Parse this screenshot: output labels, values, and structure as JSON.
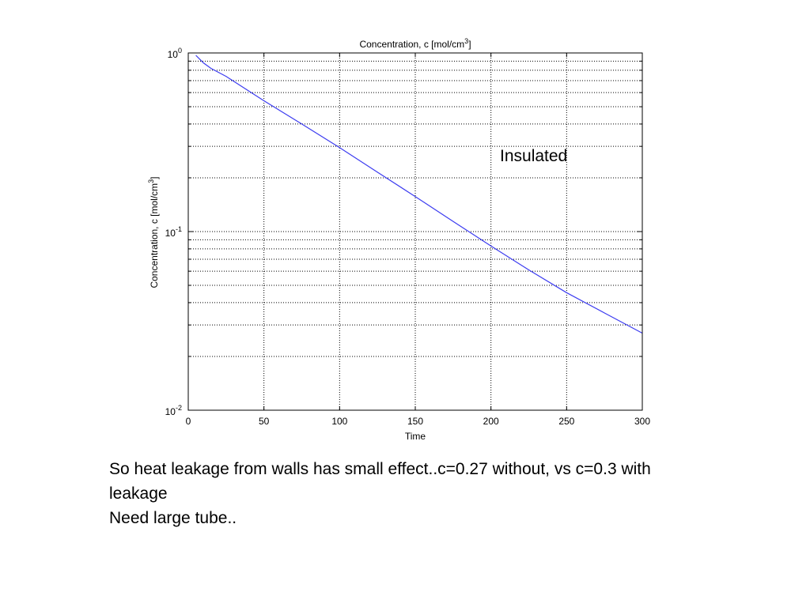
{
  "chart_data": {
    "type": "line",
    "title": "Concentration, c [mol/cm",
    "title_sup": "3",
    "title_end": "]",
    "xlabel": "Time",
    "ylabel": "Concentration, c [mol/cm",
    "ylabel_sup": "3",
    "ylabel_end": "]",
    "xlim": [
      0,
      300
    ],
    "ylim": [
      0.01,
      1
    ],
    "yscale": "log",
    "grid": true,
    "x_ticks": [
      "0",
      "50",
      "100",
      "150",
      "200",
      "250",
      "300"
    ],
    "y_ticks": [
      {
        "base": "10",
        "exp": "0"
      },
      {
        "base": "10",
        "exp": "-1"
      },
      {
        "base": "10",
        "exp": "-2"
      }
    ],
    "series": [
      {
        "color": "#3c3cf0",
        "x": [
          5,
          10,
          15,
          25,
          50,
          75,
          100,
          125,
          150,
          175,
          200,
          225,
          250,
          275,
          300
        ],
        "y": [
          0.97,
          0.88,
          0.82,
          0.74,
          0.54,
          0.4,
          0.295,
          0.215,
          0.157,
          0.114,
          0.083,
          0.061,
          0.0455,
          0.035,
          0.027
        ]
      }
    ],
    "annotation": "Insulated",
    "annotation_pos": [
      205,
      0.36
    ]
  },
  "text": {
    "line1": "So heat leakage from walls has small effect..c=0.27 without, vs c=0.3 with leakage",
    "line2": "Need large tube.."
  }
}
